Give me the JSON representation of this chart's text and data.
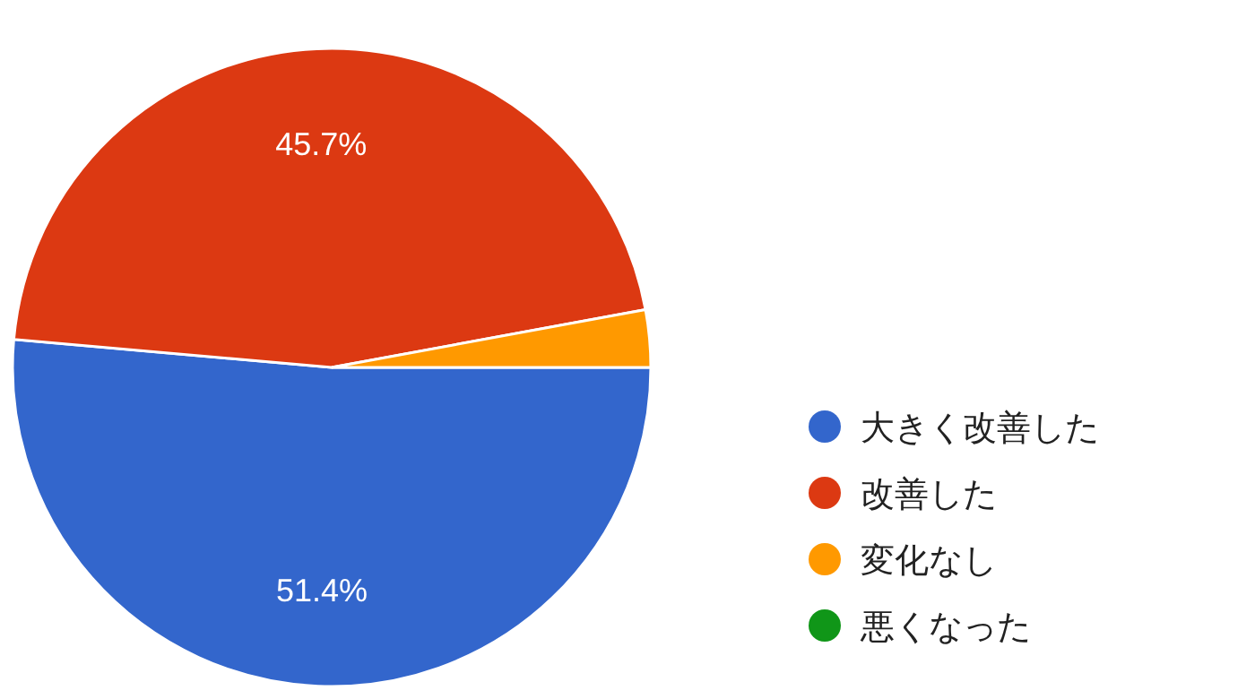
{
  "chart_data": {
    "type": "pie",
    "categories": [
      "大きく改善した",
      "改善した",
      "変化なし",
      "悪くなった"
    ],
    "values": [
      51.4,
      45.7,
      2.9,
      0
    ],
    "colors": [
      "#3366cc",
      "#dc3912",
      "#ff9900",
      "#109618"
    ],
    "value_labels": [
      "51.4%",
      "45.7%",
      null,
      null
    ],
    "legend": "right"
  }
}
